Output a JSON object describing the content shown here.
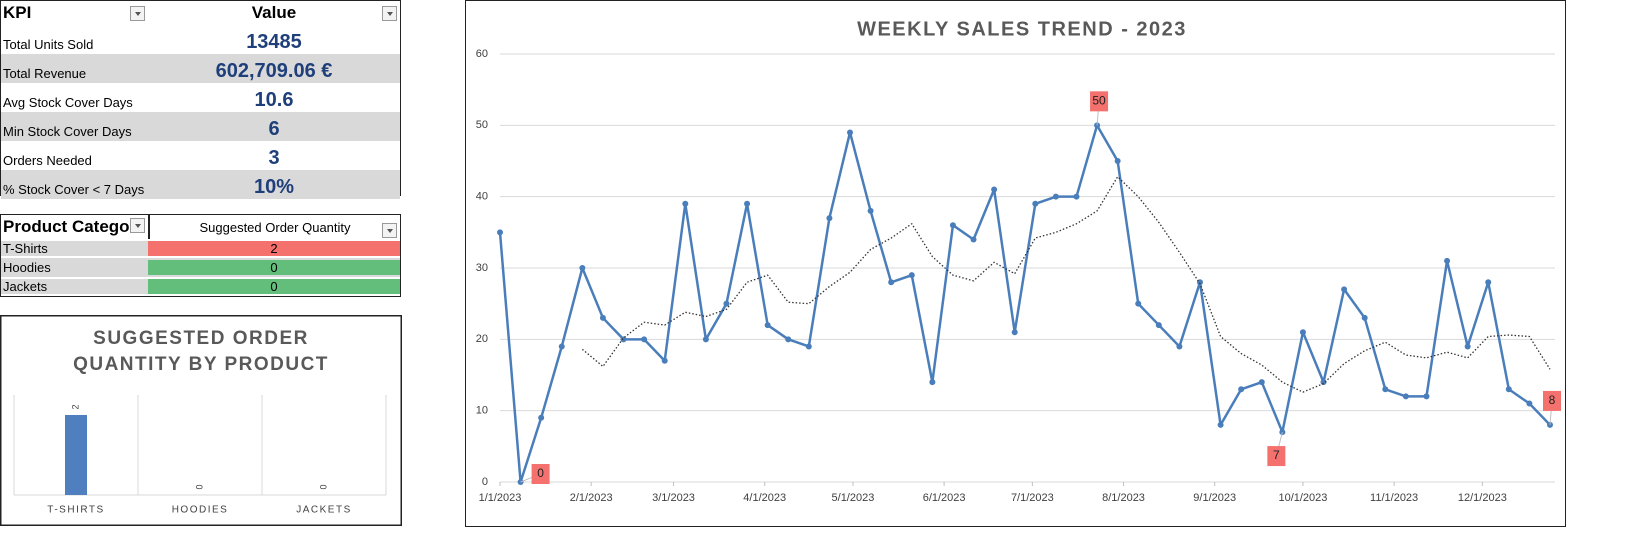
{
  "kpi_table": {
    "header": [
      "KPI",
      "Value"
    ],
    "rows": [
      [
        "Total Units Sold",
        "13485"
      ],
      [
        "Total Revenue",
        "602,709.06  €"
      ],
      [
        "Avg Stock Cover Days",
        "10.6"
      ],
      [
        "Min Stock Cover Days",
        "6"
      ],
      [
        "Orders Needed",
        "3"
      ],
      [
        "% Stock Cover < 7 Days",
        "10%"
      ]
    ]
  },
  "order_table": {
    "header": [
      "Product Catego",
      "Suggested Order Quantity"
    ],
    "rows": [
      [
        "T-Shirts",
        "2"
      ],
      [
        "Hoodies",
        "0"
      ],
      [
        "Jackets",
        "0"
      ]
    ]
  },
  "chart_data": [
    {
      "type": "bar",
      "title": "SUGGESTED ORDER QUANTITY BY PRODUCT",
      "categories": [
        "T-SHIRTS",
        "HOODIES",
        "JACKETS"
      ],
      "values": [
        2,
        0,
        0
      ],
      "color": "#4f7fbf",
      "ylim": [
        0,
        2.5
      ]
    },
    {
      "type": "line",
      "title": "WEEKLY SALES TREND - 2023",
      "x": [
        "1/1/2023",
        "1/8/2023",
        "1/15/2023",
        "1/22/2023",
        "1/29/2023",
        "2/5/2023",
        "2/12/2023",
        "2/19/2023",
        "2/26/2023",
        "3/5/2023",
        "3/12/2023",
        "3/19/2023",
        "3/26/2023",
        "4/2/2023",
        "4/9/2023",
        "4/16/2023",
        "4/23/2023",
        "4/30/2023",
        "5/7/2023",
        "5/14/2023",
        "5/21/2023",
        "5/28/2023",
        "6/4/2023",
        "6/11/2023",
        "6/18/2023",
        "6/25/2023",
        "7/2/2023",
        "7/9/2023",
        "7/16/2023",
        "7/23/2023",
        "7/30/2023",
        "8/6/2023",
        "8/13/2023",
        "8/20/2023",
        "8/27/2023",
        "9/3/2023",
        "9/10/2023",
        "9/17/2023",
        "9/24/2023",
        "10/1/2023",
        "10/8/2023",
        "10/15/2023",
        "10/22/2023",
        "10/29/2023",
        "11/5/2023",
        "11/12/2023",
        "11/19/2023",
        "11/26/2023",
        "12/3/2023",
        "12/10/2023",
        "12/17/2023",
        "12/24/2023"
      ],
      "series": [
        {
          "color": "#4a7ebb",
          "style": "solid",
          "values": [
            35,
            0,
            9,
            19,
            30,
            23,
            20,
            20,
            17,
            39,
            20,
            25,
            39,
            22,
            20,
            19,
            37,
            49,
            38,
            28,
            29,
            14,
            36,
            34,
            41,
            21,
            39,
            40,
            40,
            50,
            45,
            25,
            22,
            19,
            28,
            8,
            13,
            14,
            7,
            21,
            14,
            27,
            23,
            13,
            12,
            12,
            31,
            19,
            28,
            13,
            11,
            8
          ]
        },
        {
          "color": "#333333",
          "style": "dotted",
          "values": [
            null,
            null,
            null,
            null,
            18.6,
            16.2,
            20.2,
            22.4,
            22,
            23.8,
            23.2,
            24.2,
            28,
            29,
            25.2,
            25,
            27.4,
            29.4,
            32.6,
            34.2,
            36.2,
            31.6,
            29,
            28.2,
            30.8,
            29.2,
            34.2,
            35,
            36.2,
            38,
            42.8,
            40,
            36.4,
            32.2,
            27.8,
            20.4,
            18,
            16.4,
            14,
            12.6,
            13.8,
            16.6,
            18.4,
            19.6,
            17.8,
            17.4,
            18.2,
            17.4,
            20.4,
            20.6,
            20.4,
            15.8
          ]
        }
      ],
      "data_labels": [
        {
          "index": 1,
          "position": "right"
        },
        {
          "index": 29,
          "position": "above"
        },
        {
          "index": 38,
          "position": "below"
        },
        {
          "index": 51,
          "position": "above"
        }
      ],
      "label_color": "#f4716e",
      "xlim": [
        "1/1/2023",
        "12/24/2023"
      ],
      "xticks": [
        "1/1/2023",
        "2/1/2023",
        "3/1/2023",
        "4/1/2023",
        "5/1/2023",
        "6/1/2023",
        "7/1/2023",
        "8/1/2023",
        "9/1/2023",
        "10/1/2023",
        "11/1/2023",
        "12/1/2023"
      ],
      "ylim": [
        0,
        60
      ],
      "yticks": [
        0,
        10,
        20,
        30,
        40,
        50,
        60
      ],
      "grid": true
    }
  ]
}
